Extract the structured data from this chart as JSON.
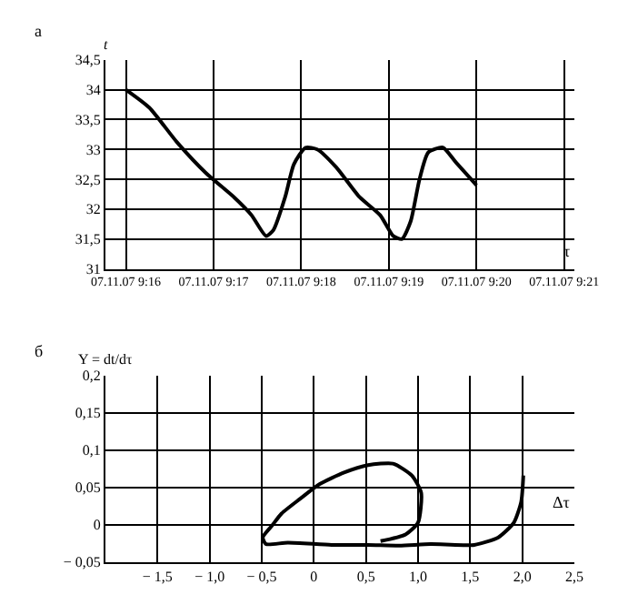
{
  "chart_data": [
    {
      "type": "line",
      "title": "а",
      "xlabel": "τ",
      "ylabel": "t",
      "grid": true,
      "x": [
        "--11-07T09:16:00",
        "--11-07T09:16:16",
        "--11-07T09:16:35",
        "--11-07T09:16:55",
        "--11-07T09:17:14",
        "--11-07T09:17:26",
        "--11-07T09:17:36",
        "--11-07T09:17:41",
        "--11-07T09:17:49",
        "--11-07T09:17:55",
        "--11-07T09:18:03",
        "--11-07T09:18:11",
        "--11-07T09:18:24",
        "--11-07T09:18:40",
        "--11-07T09:18:54",
        "--11-07T09:19:03",
        "--11-07T09:19:09",
        "--11-07T09:19:15",
        "--11-07T09:19:21",
        "--11-07T09:19:27",
        "--11-07T09:19:37",
        "--11-07T09:19:46",
        "--11-07T09:20:00"
      ],
      "series": [
        {
          "color": "#000000",
          "values": [
            34.0,
            33.7,
            33.12,
            32.6,
            32.2,
            31.9,
            31.55,
            31.65,
            32.2,
            32.75,
            33.03,
            33.0,
            32.7,
            32.2,
            31.9,
            31.55,
            31.5,
            31.8,
            32.5,
            32.95,
            33.03,
            32.78,
            32.4
          ]
        }
      ],
      "xlim": [
        "--11-07T09:15:46",
        "--11-07T09:21:07"
      ],
      "xticks": [
        {
          "value": "--11-07T09:16",
          "label": "07.11.07 9:16"
        },
        {
          "value": "--11-07T09:17",
          "label": "07.11.07 9:17"
        },
        {
          "value": "--11-07T09:18",
          "label": "07.11.07 9:18"
        },
        {
          "value": "--11-07T09:19",
          "label": "07.11.07 9:19"
        },
        {
          "value": "--11-07T09:20",
          "label": "07.11.07 9:20"
        },
        {
          "value": "--11-07T09:21",
          "label": "07.11.07 9:21"
        }
      ],
      "ylim": [
        31,
        34.5
      ],
      "yticks": [
        31,
        {
          "value": 31.5,
          "label": "31,5"
        },
        32,
        {
          "value": 32.5,
          "label": "32,5"
        },
        33,
        {
          "value": 33.5,
          "label": "33,5"
        },
        34,
        {
          "value": 34.5,
          "label": "34,5"
        }
      ]
    },
    {
      "type": "line",
      "title": "б",
      "xlabel": "Δτ",
      "ylabel": "Y = dt/dτ",
      "grid": true,
      "x": [
        2.01,
        1.99,
        1.92,
        1.77,
        1.54,
        1.12,
        0.82,
        0.52,
        0.17,
        -0.25,
        -0.46,
        -0.49,
        -0.4,
        -0.31,
        -0.13,
        0.05,
        0.29,
        0.52,
        0.76,
        0.94,
        1.03,
        1.0,
        0.88,
        0.64
      ],
      "series": [
        {
          "color": "#000000",
          "values": [
            0.066,
            0.031,
            0.003,
            -0.017,
            -0.027,
            -0.026,
            -0.028,
            -0.027,
            -0.027,
            -0.024,
            -0.026,
            -0.017,
            -0.001,
            0.015,
            0.035,
            0.054,
            0.07,
            0.08,
            0.082,
            0.066,
            0.043,
            0.003,
            -0.013,
            -0.022
          ]
        }
      ],
      "xlim": [
        -2,
        2.5
      ],
      "xticks": [
        {
          "value": -1.5,
          "label": "− 1,5"
        },
        {
          "value": -1,
          "label": "− 1,0"
        },
        {
          "value": -0.5,
          "label": "− 0,5"
        },
        0,
        {
          "value": 0.5,
          "label": "0,5"
        },
        {
          "value": 1,
          "label": "1,0"
        },
        {
          "value": 1.5,
          "label": "1,5"
        },
        {
          "value": 2,
          "label": "2,0"
        },
        {
          "value": 2.5,
          "label": "2,5"
        }
      ],
      "ylim": [
        -0.05,
        0.2
      ],
      "yticks": [
        {
          "value": -0.05,
          "label": "− 0,05"
        },
        0,
        {
          "value": 0.05,
          "label": "0,05"
        },
        {
          "value": 0.1,
          "label": "0,1"
        },
        {
          "value": 0.15,
          "label": "0,15"
        },
        {
          "value": 0.2,
          "label": "0,2"
        }
      ]
    }
  ]
}
